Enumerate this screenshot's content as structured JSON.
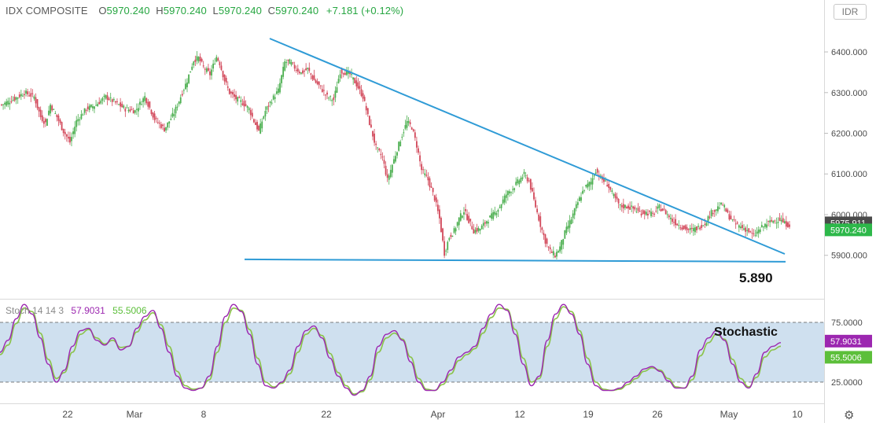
{
  "header": {
    "symbol": "IDX COMPOSITE",
    "open_label": "O",
    "open": "5970.240",
    "high_label": "H",
    "high": "5970.240",
    "low_label": "L",
    "low": "5970.240",
    "close_label": "C",
    "close": "5970.240",
    "change": "+7.181 (+0.12%)"
  },
  "currency_button": "IDR",
  "stoch_header": {
    "name": "Stoch 14 14 3",
    "k": "57.9031",
    "d": "55.5006"
  },
  "annotations": {
    "support_label": "5.890",
    "stoch_label": "Stochastic"
  },
  "colors": {
    "up": "#26a69a",
    "up_fill": "#4caf50",
    "down": "#d2485a",
    "trend": "#2f9bd6",
    "stoch_k": "#9c27b0",
    "stoch_d": "#8bc34a",
    "band": "#cfe0ef"
  },
  "icons": {
    "settings": "gear-icon"
  },
  "chart_data": [
    {
      "type": "candlestick",
      "title": "IDX COMPOSITE",
      "ylim": [
        5855,
        6460
      ],
      "y_ticks": [
        "6400.000",
        "6300.000",
        "6200.000",
        "6100.000",
        "6000.000",
        "5900.000"
      ],
      "y_tick_values": [
        6400,
        6300,
        6200,
        6100,
        6000,
        5900
      ],
      "x_ticks": [
        "22",
        "Mar",
        "8",
        "22",
        "Apr",
        "12",
        "19",
        "26",
        "May",
        "10"
      ],
      "price_labels": [
        {
          "text": "5975.911",
          "value": 5975.911,
          "color": "#4a4a4a"
        },
        {
          "text": "5970.240",
          "value": 5970.24,
          "color": "#2db84a"
        }
      ],
      "close_path": [
        [
          0,
          6270
        ],
        [
          8,
          6285
        ],
        [
          14,
          6300
        ],
        [
          20,
          6290
        ],
        [
          24,
          6240
        ],
        [
          27,
          6225
        ],
        [
          30,
          6270
        ],
        [
          34,
          6240
        ],
        [
          38,
          6205
        ],
        [
          42,
          6178
        ],
        [
          46,
          6230
        ],
        [
          52,
          6260
        ],
        [
          58,
          6270
        ],
        [
          64,
          6290
        ],
        [
          70,
          6275
        ],
        [
          76,
          6260
        ],
        [
          82,
          6255
        ],
        [
          88,
          6290
        ],
        [
          94,
          6235
        ],
        [
          100,
          6210
        ],
        [
          106,
          6250
        ],
        [
          110,
          6290
        ],
        [
          114,
          6330
        ],
        [
          118,
          6380
        ],
        [
          121,
          6385
        ],
        [
          124,
          6362
        ],
        [
          128,
          6345
        ],
        [
          132,
          6388
        ],
        [
          134,
          6372
        ],
        [
          137,
          6330
        ],
        [
          140,
          6300
        ],
        [
          144,
          6285
        ],
        [
          148,
          6275
        ],
        [
          152,
          6260
        ],
        [
          155,
          6230
        ],
        [
          158,
          6205
        ],
        [
          162,
          6255
        ],
        [
          166,
          6282
        ],
        [
          170,
          6305
        ],
        [
          174,
          6375
        ],
        [
          177,
          6375
        ],
        [
          180,
          6362
        ],
        [
          184,
          6348
        ],
        [
          188,
          6358
        ],
        [
          192,
          6330
        ],
        [
          196,
          6312
        ],
        [
          200,
          6290
        ],
        [
          204,
          6282
        ],
        [
          208,
          6352
        ],
        [
          211,
          6350
        ],
        [
          214,
          6345
        ],
        [
          218,
          6320
        ],
        [
          222,
          6290
        ],
        [
          226,
          6225
        ],
        [
          230,
          6165
        ],
        [
          234,
          6140
        ],
        [
          237,
          6085
        ],
        [
          241,
          6135
        ],
        [
          245,
          6185
        ],
        [
          249,
          6228
        ],
        [
          252,
          6215
        ],
        [
          255,
          6170
        ],
        [
          258,
          6110
        ],
        [
          262,
          6085
        ],
        [
          266,
          6040
        ],
        [
          269,
          5990
        ],
        [
          272,
          5905
        ],
        [
          275,
          5945
        ],
        [
          278,
          5960
        ],
        [
          281,
          5990
        ],
        [
          284,
          6010
        ],
        [
          287,
          5985
        ],
        [
          290,
          5960
        ],
        [
          294,
          5965
        ],
        [
          298,
          5985
        ],
        [
          302,
          6000
        ],
        [
          306,
          6020
        ],
        [
          310,
          6050
        ],
        [
          314,
          6065
        ],
        [
          318,
          6085
        ],
        [
          321,
          6098
        ],
        [
          324,
          6082
        ],
        [
          327,
          6035
        ],
        [
          331,
          5975
        ],
        [
          334,
          5935
        ],
        [
          337,
          5910
        ],
        [
          340,
          5900
        ],
        [
          343,
          5920
        ],
        [
          346,
          5955
        ],
        [
          350,
          5990
        ],
        [
          354,
          6030
        ],
        [
          358,
          6065
        ],
        [
          362,
          6080
        ],
        [
          365,
          6110
        ],
        [
          368,
          6090
        ],
        [
          372,
          6075
        ],
        [
          376,
          6045
        ],
        [
          380,
          6020
        ],
        [
          384,
          6020
        ],
        [
          388,
          6015
        ],
        [
          392,
          6005
        ],
        [
          396,
          6005
        ],
        [
          400,
          6000
        ],
        [
          404,
          6018
        ],
        [
          408,
          6005
        ],
        [
          412,
          5985
        ],
        [
          416,
          5975
        ],
        [
          420,
          5965
        ],
        [
          424,
          5962
        ],
        [
          428,
          5968
        ],
        [
          432,
          5980
        ],
        [
          436,
          6005
        ],
        [
          440,
          6018
        ],
        [
          443,
          6025
        ],
        [
          446,
          6000
        ],
        [
          450,
          5980
        ],
        [
          454,
          5970
        ],
        [
          458,
          5962
        ],
        [
          462,
          5948
        ],
        [
          466,
          5965
        ],
        [
          470,
          5978
        ],
        [
          474,
          5985
        ],
        [
          478,
          5988
        ],
        [
          481,
          5978
        ],
        [
          484,
          5975
        ]
      ],
      "support_line": {
        "value": 5890,
        "label": "5.890"
      },
      "trend_line": [
        [
          0,
          6405
        ],
        [
          484,
          5925
        ]
      ]
    },
    {
      "type": "line",
      "title": "Stoch 14 14 3",
      "ylim": [
        0,
        100
      ],
      "y_ticks": [
        "75.0000",
        "25.0000"
      ],
      "y_tick_values": [
        75,
        25
      ],
      "band": [
        25,
        75
      ],
      "series": [
        {
          "name": "57.9031",
          "values": [
            50,
            60,
            78,
            90,
            82,
            62,
            40,
            25,
            35,
            55,
            68,
            70,
            60,
            56,
            62,
            52,
            55,
            70,
            80,
            85,
            70,
            50,
            30,
            20,
            18,
            20,
            30,
            55,
            80,
            90,
            84,
            65,
            40,
            22,
            20,
            25,
            35,
            55,
            68,
            72,
            62,
            45,
            30,
            20,
            14,
            18,
            30,
            55,
            65,
            68,
            60,
            42,
            25,
            18,
            18,
            25,
            35,
            46,
            50,
            55,
            70,
            82,
            90,
            85,
            65,
            40,
            22,
            30,
            60,
            82,
            90,
            82,
            65,
            40,
            22,
            18,
            18,
            20,
            25,
            30,
            36,
            38,
            34,
            26,
            20,
            20,
            30,
            52,
            62,
            68,
            60,
            40,
            25,
            20,
            32,
            50,
            55,
            58
          ]
        },
        {
          "name": "55.5006",
          "values": [
            48,
            56,
            74,
            87,
            84,
            66,
            44,
            28,
            33,
            50,
            65,
            69,
            62,
            57,
            60,
            54,
            55,
            67,
            77,
            83,
            73,
            55,
            34,
            22,
            19,
            20,
            27,
            50,
            75,
            87,
            85,
            69,
            45,
            25,
            21,
            24,
            32,
            50,
            65,
            70,
            64,
            49,
            33,
            22,
            15,
            17,
            27,
            50,
            62,
            66,
            61,
            46,
            28,
            19,
            18,
            23,
            32,
            43,
            48,
            53,
            66,
            79,
            87,
            86,
            69,
            45,
            25,
            28,
            55,
            78,
            88,
            84,
            68,
            45,
            25,
            19,
            18,
            19,
            23,
            28,
            34,
            37,
            35,
            28,
            21,
            20,
            27,
            47,
            58,
            65,
            61,
            44,
            28,
            21,
            29,
            46,
            52,
            55
          ]
        }
      ]
    }
  ]
}
